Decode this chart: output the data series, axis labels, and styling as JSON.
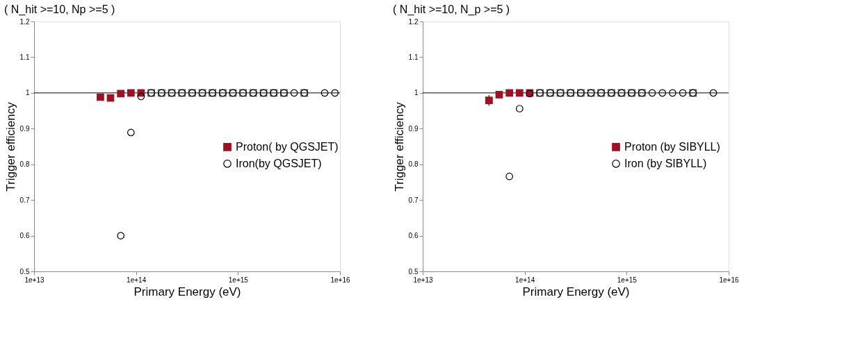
{
  "chart_data": [
    {
      "type": "scatter",
      "title": "( N_hit >=10, Np >=5 )",
      "xlabel": "Primary Energy (eV)",
      "ylabel": "Trigger efficiency",
      "log": "x",
      "xlim": [
        10000000000000.0,
        1e+16
      ],
      "xticks": [
        {
          "value": 10000000000000.0,
          "label": "1e+13"
        },
        {
          "value": 100000000000000.0,
          "label": "1e+14"
        },
        {
          "value": 1000000000000000.0,
          "label": "1e+15"
        },
        {
          "value": 1e+16,
          "label": "1e+16"
        }
      ],
      "ylim": [
        0.5,
        1.2
      ],
      "yticks": [
        0.5,
        0.6,
        0.7,
        0.8,
        0.9,
        1,
        1.1,
        1.2
      ],
      "grid": false,
      "legend": "right",
      "ref_lines": [
        {
          "axis": "y",
          "value": 1,
          "color": "#000000"
        }
      ],
      "series": [
        {
          "name": "Proton( by QGSJET)",
          "color": "#a01020",
          "marker": "square",
          "x": [
            44700000000000.0,
            56200000000000.0,
            70800000000000.0,
            89100000000000.0,
            112000000000000.0
          ],
          "values": [
            0.988,
            0.986,
            0.998,
            1.0,
            1.0
          ]
        },
        {
          "name": "Iron(by QGSJET)",
          "color": "#000000",
          "marker": "circle",
          "x": [
            70800000000000.0,
            89100000000000.0,
            112000000000000.0,
            141000000000000.0,
            178000000000000.0,
            224000000000000.0,
            282000000000000.0,
            355000000000000.0,
            447000000000000.0,
            562000000000000.0,
            708000000000000.0,
            891000000000000.0,
            1120000000000000.0,
            1410000000000000.0,
            1780000000000000.0,
            2240000000000000.0,
            2820000000000000.0,
            3550000000000000.0,
            4470000000000000.0,
            7080000000000000.0,
            8910000000000000.0
          ],
          "values": [
            0.6,
            0.889,
            0.99,
            1,
            1,
            1,
            1,
            1,
            1,
            1,
            1,
            1,
            1,
            1,
            1,
            1,
            1,
            1,
            1,
            1,
            1
          ]
        },
        {
          "color": "#000000",
          "marker": "square",
          "x": [
            141000000000000.0,
            178000000000000.0,
            224000000000000.0,
            282000000000000.0,
            355000000000000.0,
            447000000000000.0,
            562000000000000.0,
            708000000000000.0,
            891000000000000.0,
            1120000000000000.0,
            1410000000000000.0,
            1780000000000000.0,
            2240000000000000.0,
            2820000000000000.0,
            4470000000000000.0
          ],
          "values": [
            1,
            1,
            1,
            1,
            1,
            1,
            1,
            1,
            1,
            1,
            1,
            1,
            1,
            1,
            1
          ]
        }
      ]
    },
    {
      "type": "scatter",
      "title": "( N_hit >=10, N_p >=5 )",
      "xlabel": "Primary Energy (eV)",
      "ylabel": "Trigger efficiency",
      "log": "x",
      "xlim": [
        10000000000000.0,
        1e+16
      ],
      "xticks": [
        {
          "value": 10000000000000.0,
          "label": "1e+13"
        },
        {
          "value": 100000000000000.0,
          "label": "1e+14"
        },
        {
          "value": 1000000000000000.0,
          "label": "1e+15"
        },
        {
          "value": 1e+16,
          "label": "1e+16"
        }
      ],
      "ylim": [
        0.5,
        1.2
      ],
      "yticks": [
        0.5,
        0.6,
        0.7,
        0.8,
        0.9,
        1,
        1.1,
        1.2
      ],
      "grid": false,
      "legend": "right",
      "ref_lines": [
        {
          "axis": "y",
          "value": 1,
          "color": "#000000"
        }
      ],
      "series": [
        {
          "name": "Proton (by SIBYLL)",
          "color": "#a01020",
          "marker": "square",
          "x": [
            44700000000000.0,
            56200000000000.0,
            70800000000000.0,
            89100000000000.0,
            112000000000000.0
          ],
          "values": [
            0.979,
            0.995,
            1.0,
            1.0,
            1.0
          ],
          "errors": [
            0.015,
            null,
            null,
            null,
            null
          ]
        },
        {
          "name": "Iron (by SIBYLL)",
          "color": "#000000",
          "marker": "circle",
          "x": [
            70800000000000.0,
            89100000000000.0,
            112000000000000.0,
            141000000000000.0,
            178000000000000.0,
            224000000000000.0,
            282000000000000.0,
            355000000000000.0,
            447000000000000.0,
            562000000000000.0,
            708000000000000.0,
            891000000000000.0,
            1120000000000000.0,
            1410000000000000.0,
            1780000000000000.0,
            2240000000000000.0,
            2820000000000000.0,
            3550000000000000.0,
            4470000000000000.0,
            7080000000000000.0
          ],
          "values": [
            0.766,
            0.956,
            0.998,
            1,
            1,
            1,
            1,
            1,
            1,
            1,
            1,
            1,
            1,
            1,
            1,
            1,
            1,
            1,
            1,
            1
          ]
        },
        {
          "color": "#000000",
          "marker": "square",
          "x": [
            141000000000000.0,
            178000000000000.0,
            224000000000000.0,
            282000000000000.0,
            355000000000000.0,
            447000000000000.0,
            562000000000000.0,
            708000000000000.0,
            891000000000000.0,
            1120000000000000.0,
            1410000000000000.0,
            4470000000000000.0
          ],
          "values": [
            1,
            1,
            1,
            1,
            1,
            1,
            1,
            1,
            1,
            1,
            1,
            1
          ]
        }
      ]
    }
  ]
}
